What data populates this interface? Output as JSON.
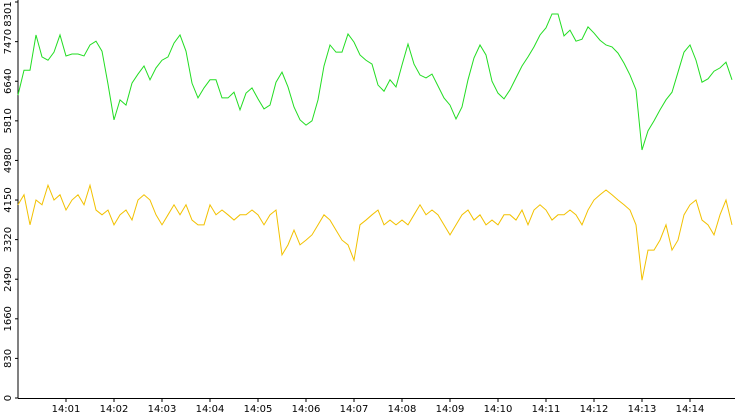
{
  "chart_data": {
    "type": "line",
    "categories": [
      null,
      null,
      null,
      null,
      null,
      null,
      null,
      null,
      "14:01",
      null,
      null,
      null,
      null,
      null,
      null,
      null,
      "14:02",
      null,
      null,
      null,
      null,
      null,
      null,
      null,
      "14:03",
      null,
      null,
      null,
      null,
      null,
      null,
      null,
      "14:04",
      null,
      null,
      null,
      null,
      null,
      null,
      null,
      "14:05",
      null,
      null,
      null,
      null,
      null,
      null,
      null,
      "14:06",
      null,
      null,
      null,
      null,
      null,
      null,
      null,
      "14:07",
      null,
      null,
      null,
      null,
      null,
      null,
      null,
      "14:08",
      null,
      null,
      null,
      null,
      null,
      null,
      null,
      "14:09",
      null,
      null,
      null,
      null,
      null,
      null,
      null,
      "14:10",
      null,
      null,
      null,
      null,
      null,
      null,
      null,
      "14:11",
      null,
      null,
      null,
      null,
      null,
      null,
      null,
      "14:12",
      null,
      null,
      null,
      null,
      null,
      null,
      null,
      "14:13",
      null,
      null,
      null,
      null,
      null,
      null,
      null,
      "14:14",
      null,
      null,
      null,
      null,
      null,
      null,
      null
    ],
    "series": [
      {
        "color": "#22dd22",
        "values": [
          6350,
          6870,
          6870,
          7610,
          7150,
          7080,
          7250,
          7610,
          7170,
          7210,
          7210,
          7170,
          7400,
          7480,
          7270,
          6580,
          5830,
          6250,
          6140,
          6600,
          6790,
          6960,
          6670,
          6920,
          7080,
          7150,
          7440,
          7610,
          7270,
          6600,
          6290,
          6500,
          6670,
          6670,
          6290,
          6290,
          6410,
          6040,
          6390,
          6500,
          6270,
          6060,
          6140,
          6620,
          6830,
          6520,
          6100,
          5830,
          5720,
          5810,
          6250,
          6960,
          7400,
          7250,
          7250,
          7630,
          7460,
          7190,
          7080,
          7000,
          6560,
          6430,
          6670,
          6520,
          6980,
          7420,
          7000,
          6770,
          6710,
          6790,
          6540,
          6290,
          6140,
          5850,
          6100,
          6670,
          7130,
          7400,
          7190,
          6640,
          6390,
          6270,
          6460,
          6710,
          6960,
          7150,
          7360,
          7610,
          7760,
          8050,
          8050,
          7590,
          7710,
          7480,
          7520,
          7780,
          7650,
          7500,
          7400,
          7360,
          7230,
          7020,
          6770,
          6460,
          5200,
          5600,
          5810,
          6040,
          6250,
          6410,
          6830,
          7250,
          7400,
          7080,
          6620,
          6690,
          6850,
          6920,
          7040,
          6670
        ]
      },
      {
        "color": "#f2c100",
        "values": [
          4050,
          4260,
          3630,
          4150,
          4050,
          4460,
          4150,
          4260,
          3940,
          4150,
          4260,
          4050,
          4460,
          3940,
          3840,
          3940,
          3630,
          3840,
          3940,
          3730,
          4150,
          4260,
          4150,
          3840,
          3630,
          3840,
          4050,
          3840,
          4050,
          3730,
          3630,
          3630,
          4050,
          3840,
          3940,
          3840,
          3730,
          3840,
          3840,
          3940,
          3840,
          3630,
          3840,
          3940,
          3000,
          3210,
          3520,
          3210,
          3310,
          3420,
          3630,
          3840,
          3730,
          3520,
          3310,
          3210,
          2890,
          3630,
          3730,
          3840,
          3940,
          3630,
          3730,
          3630,
          3730,
          3630,
          3840,
          4050,
          3840,
          3940,
          3840,
          3630,
          3420,
          3630,
          3840,
          3940,
          3730,
          3840,
          3630,
          3730,
          3630,
          3840,
          3840,
          3730,
          3940,
          3630,
          3940,
          4050,
          3940,
          3730,
          3840,
          3840,
          3940,
          3840,
          3630,
          3940,
          4150,
          4260,
          4360,
          4260,
          4150,
          4050,
          3940,
          3630,
          2470,
          3100,
          3100,
          3310,
          3630,
          3100,
          3310,
          3840,
          4050,
          4150,
          3730,
          3630,
          3420,
          3840,
          4150,
          3630
        ]
      }
    ],
    "ylim": [
      0,
      8301
    ],
    "yticks": [
      0,
      830,
      1660,
      2490,
      3320,
      4150,
      4980,
      5810,
      6640,
      7470,
      8301
    ],
    "grid": false
  }
}
